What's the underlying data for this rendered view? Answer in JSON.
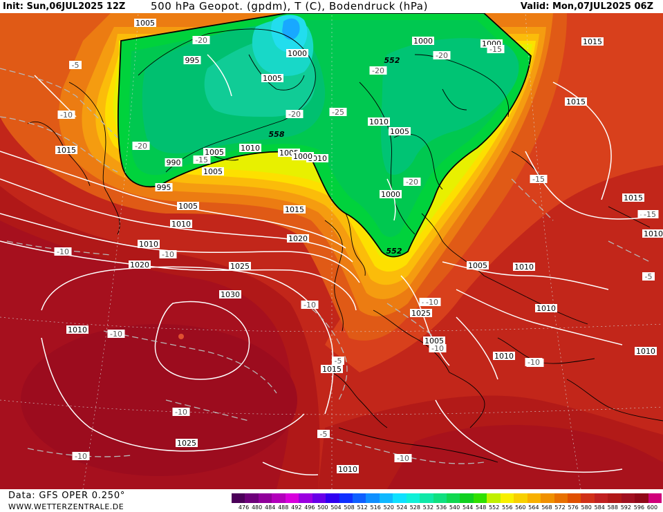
{
  "header": {
    "init": "Init: Sun,06JUL2025 12Z",
    "title": "500 hPa Geopot. (gpdm), T (C), Bodendruck (hPa)",
    "valid": "Valid: Mon,07JUL2025 06Z"
  },
  "footer": {
    "data_source": "Data: GFS OPER 0.250°",
    "website": "WWW.WETTERZENTRALE.DE"
  },
  "colors": {
    "background_map": "#b01010",
    "geopotential_high": "#a30b1e",
    "geopotential_low": "#00cc44",
    "cold_core": "#22dddd",
    "isobar_line": "#ffffff",
    "coastline": "#000000"
  },
  "color_scale": {
    "labels": [
      "476",
      "480",
      "484",
      "488",
      "492",
      "496",
      "500",
      "504",
      "508",
      "512",
      "516",
      "520",
      "524",
      "528",
      "532",
      "536",
      "540",
      "544",
      "548",
      "552",
      "556",
      "560",
      "564",
      "568",
      "572",
      "576",
      "580",
      "584",
      "588",
      "592",
      "596",
      "600"
    ],
    "colors": [
      "#4b0059",
      "#6d007a",
      "#90009a",
      "#b200bb",
      "#d800dd",
      "#9a00e0",
      "#6800e8",
      "#3000f0",
      "#1030ff",
      "#1060ff",
      "#1090ff",
      "#10b8ff",
      "#10e0ff",
      "#10f0d8",
      "#10e8a8",
      "#10e080",
      "#10d850",
      "#10d020",
      "#30e000",
      "#c0f000",
      "#f8f000",
      "#f8d000",
      "#f8b000",
      "#f09000",
      "#e87000",
      "#e05000",
      "#d03018",
      "#c02020",
      "#b01818",
      "#a01020",
      "#900818",
      "#d0007a"
    ]
  },
  "isobar_labels": [
    {
      "text": "1005",
      "kind": "pressure"
    },
    {
      "text": "995",
      "kind": "pressure"
    },
    {
      "text": "1000",
      "kind": "pressure"
    },
    {
      "text": "1005",
      "kind": "pressure"
    },
    {
      "text": "1000",
      "kind": "pressure"
    },
    {
      "text": "1000",
      "kind": "pressure"
    },
    {
      "text": "1005",
      "kind": "pressure"
    },
    {
      "text": "1015",
      "kind": "pressure"
    },
    {
      "text": "1010",
      "kind": "pressure"
    },
    {
      "text": "1005",
      "kind": "pressure"
    },
    {
      "text": "1015",
      "kind": "pressure"
    },
    {
      "text": "990",
      "kind": "pressure"
    },
    {
      "text": "1000",
      "kind": "pressure"
    },
    {
      "text": "1010",
      "kind": "pressure"
    },
    {
      "text": "1005",
      "kind": "pressure"
    },
    {
      "text": "1010",
      "kind": "pressure"
    },
    {
      "text": "1005",
      "kind": "pressure"
    },
    {
      "text": "995",
      "kind": "pressure"
    },
    {
      "text": "1005",
      "kind": "pressure"
    },
    {
      "text": "1000",
      "kind": "pressure"
    },
    {
      "text": "1010",
      "kind": "pressure"
    },
    {
      "text": "1015",
      "kind": "pressure"
    },
    {
      "text": "1015",
      "kind": "pressure"
    },
    {
      "text": "1020",
      "kind": "pressure"
    },
    {
      "text": "1020",
      "kind": "pressure"
    },
    {
      "text": "1025",
      "kind": "pressure"
    },
    {
      "text": "1030",
      "kind": "pressure"
    },
    {
      "text": "1005",
      "kind": "pressure"
    },
    {
      "text": "1010",
      "kind": "pressure"
    },
    {
      "text": "1010",
      "kind": "pressure"
    },
    {
      "text": "1010",
      "kind": "pressure"
    },
    {
      "text": "1025",
      "kind": "pressure"
    },
    {
      "text": "1005",
      "kind": "pressure"
    },
    {
      "text": "1010",
      "kind": "pressure"
    },
    {
      "text": "1015",
      "kind": "pressure"
    },
    {
      "text": "1010",
      "kind": "pressure"
    },
    {
      "text": "1025",
      "kind": "pressure"
    },
    {
      "text": "1010",
      "kind": "pressure"
    },
    {
      "text": "1015",
      "kind": "pressure"
    },
    {
      "text": "1010",
      "kind": "pressure"
    },
    {
      "text": "1010",
      "kind": "pressure"
    },
    {
      "text": "-5",
      "kind": "temp"
    },
    {
      "text": "-20",
      "kind": "temp"
    },
    {
      "text": "-20",
      "kind": "temp"
    },
    {
      "text": "-20",
      "kind": "temp"
    },
    {
      "text": "-15",
      "kind": "temp"
    },
    {
      "text": "-10",
      "kind": "temp"
    },
    {
      "text": "-20",
      "kind": "temp"
    },
    {
      "text": "-25",
      "kind": "temp"
    },
    {
      "text": "-20",
      "kind": "temp"
    },
    {
      "text": "-15",
      "kind": "temp"
    },
    {
      "text": "-20",
      "kind": "temp"
    },
    {
      "text": "-15",
      "kind": "temp"
    },
    {
      "text": "-10",
      "kind": "temp"
    },
    {
      "text": "-10",
      "kind": "temp"
    },
    {
      "text": "-10",
      "kind": "temp"
    },
    {
      "text": "-10",
      "kind": "temp"
    },
    {
      "text": "-15",
      "kind": "temp"
    },
    {
      "text": "-10",
      "kind": "temp"
    },
    {
      "text": "-10",
      "kind": "temp"
    },
    {
      "text": "-5",
      "kind": "temp"
    },
    {
      "text": "-10",
      "kind": "temp"
    },
    {
      "text": "-5",
      "kind": "temp"
    },
    {
      "text": "-5",
      "kind": "temp"
    },
    {
      "text": "-10",
      "kind": "temp"
    },
    {
      "text": "-10",
      "kind": "temp"
    },
    {
      "text": "-10",
      "kind": "temp"
    },
    {
      "text": "-15",
      "kind": "temp"
    },
    {
      "text": "-10",
      "kind": "temp"
    },
    {
      "text": "-10",
      "kind": "temp"
    }
  ],
  "geopotential_labels": [
    {
      "text": "552"
    },
    {
      "text": "558"
    },
    {
      "text": "552"
    }
  ]
}
